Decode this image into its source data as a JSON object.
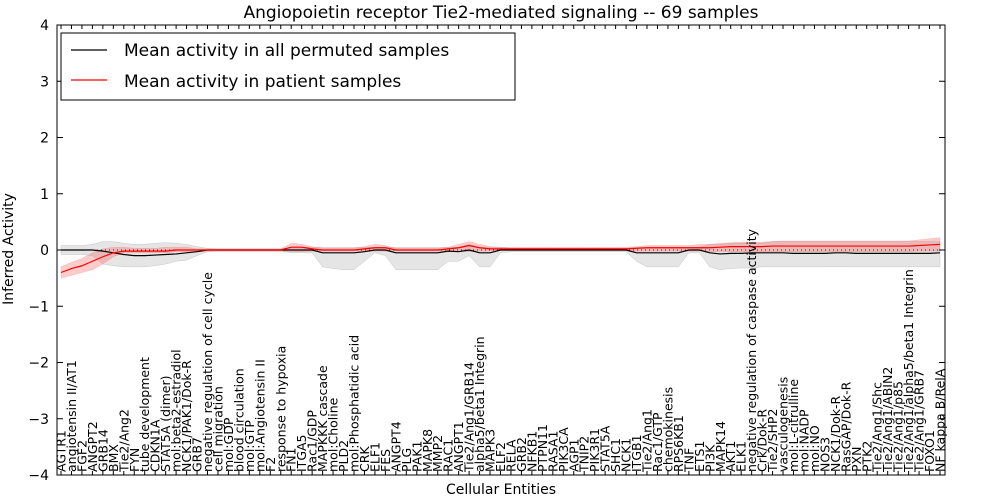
{
  "chart_data": {
    "type": "line",
    "title": "Angiopoietin receptor Tie2-mediated signaling -- 69 samples",
    "xlabel": "Cellular Entities",
    "ylabel": "Inferred Activity",
    "ylim": [
      -4,
      4
    ],
    "yticks": [
      "4",
      "3",
      "2",
      "1",
      "0",
      "−1",
      "−2",
      "−3",
      "−4"
    ],
    "legend": {
      "position": "top-left",
      "entries": [
        {
          "label": "Mean activity in all permuted samples",
          "color": "#000000"
        },
        {
          "label": "Mean activity in patient samples",
          "color": "#ff0000"
        }
      ]
    },
    "categories": [
      "AGTR1",
      "angiotensin II/AT1",
      "FGF2",
      "ANGPT2",
      "GRB14",
      "BMX",
      "Tie2/Ang2",
      "FYN",
      "tube development",
      "CDKN1A",
      "STAT5A (dimer)",
      "mol:beta2-estradiol",
      "NCK1/PAK1/Dok-R",
      "GRB7",
      "negative regulation of cell cycle",
      "cell migration",
      "mol:GDP",
      "blood circulation",
      "mol:GTP",
      "mol:Angiotensin II",
      "F2",
      "response to hypoxia",
      "FN1",
      "ITGA5",
      "Rac1/GDP",
      "MAPKKK cascade",
      "mol:Choline",
      "PLD2",
      "mol:Phosphatidic acid",
      "CRK",
      "ELF1",
      "FES",
      "ANGPT4",
      "PLG",
      "PAK1",
      "MAPK8",
      "MMP2",
      "RAC1",
      "ANGPT1",
      "Tie2/Ang1/GRB14",
      "alpha5/beta1 Integrin",
      "MAPK3",
      "ELF2",
      "RELA",
      "GRB2",
      "NFKB1",
      "PTPN11",
      "RASA1",
      "PIK3CA",
      "AGP1",
      "TNIP2",
      "PIK3R1",
      "STAT5A",
      "SHC1",
      "NCK1",
      "ITGB1",
      "Tie2/Ang1",
      "Rac1/GTP",
      "chemokinesis",
      "RPS6KB1",
      "TNF",
      "ETS1",
      "PI3K",
      "MAPK14",
      "AKT1",
      "ELK1",
      "negative regulation of caspase activity",
      "Crk/Dok-R",
      "Tie2/SHP2",
      "vasculogenesis",
      "mol:L-citrulline",
      "mol:NADP",
      "mol:NO",
      "NOS3",
      "NCK1/Dok-R",
      "RasGAP/Dok-R",
      "PXN",
      "PTK2",
      "Tie2/Ang1/Shc",
      "Tie2/Ang1/ABIN2",
      "Tie2/Ang1/p85",
      "Tie2/Ang1/alpha5/beta1 Integrin",
      "Tie2/Ang1/GRB7",
      "FOXO1",
      "NF kappa B/RelA"
    ],
    "series": [
      {
        "name": "Mean activity in all permuted samples",
        "color": "#000000",
        "values": [
          0.0,
          0.0,
          0.0,
          0.0,
          -0.02,
          -0.05,
          -0.08,
          -0.1,
          -0.1,
          -0.09,
          -0.08,
          -0.07,
          -0.05,
          -0.03,
          0.0,
          0.0,
          0.0,
          0.0,
          0.0,
          0.0,
          0.0,
          0.0,
          0.0,
          0.0,
          0.0,
          -0.05,
          -0.05,
          -0.05,
          -0.05,
          -0.03,
          0.0,
          0.0,
          -0.05,
          -0.05,
          -0.05,
          -0.05,
          -0.05,
          -0.02,
          -0.03,
          0.0,
          -0.05,
          -0.05,
          0.0,
          0.0,
          0.0,
          0.0,
          0.0,
          0.0,
          0.0,
          0.0,
          0.0,
          0.0,
          0.0,
          0.0,
          0.0,
          -0.05,
          -0.05,
          -0.05,
          -0.05,
          -0.05,
          0.0,
          0.0,
          -0.05,
          -0.07,
          -0.06,
          -0.06,
          -0.05,
          -0.05,
          -0.05,
          -0.05,
          -0.06,
          -0.06,
          -0.06,
          -0.06,
          -0.05,
          -0.05,
          -0.06,
          -0.06,
          -0.06,
          -0.06,
          -0.06,
          -0.06,
          -0.06,
          -0.06,
          -0.05
        ],
        "lower": [
          -0.08,
          -0.08,
          -0.08,
          -0.1,
          -0.25,
          -0.28,
          -0.3,
          -0.3,
          -0.3,
          -0.28,
          -0.25,
          -0.2,
          -0.18,
          -0.1,
          -0.03,
          -0.02,
          -0.02,
          -0.02,
          -0.02,
          -0.02,
          -0.02,
          -0.02,
          -0.05,
          -0.05,
          -0.05,
          -0.3,
          -0.33,
          -0.35,
          -0.35,
          -0.2,
          -0.05,
          -0.1,
          -0.35,
          -0.35,
          -0.35,
          -0.35,
          -0.35,
          -0.2,
          -0.2,
          -0.1,
          -0.3,
          -0.3,
          -0.05,
          -0.03,
          -0.03,
          -0.03,
          -0.03,
          -0.03,
          -0.03,
          -0.03,
          -0.03,
          -0.03,
          -0.03,
          -0.03,
          -0.03,
          -0.2,
          -0.3,
          -0.3,
          -0.3,
          -0.3,
          -0.05,
          -0.05,
          -0.3,
          -0.35,
          -0.33,
          -0.32,
          -0.32,
          -0.3,
          -0.3,
          -0.3,
          -0.3,
          -0.3,
          -0.3,
          -0.3,
          -0.3,
          -0.3,
          -0.3,
          -0.3,
          -0.3,
          -0.3,
          -0.3,
          -0.3,
          -0.3,
          -0.3,
          -0.3
        ],
        "upper": [
          0.08,
          0.08,
          0.08,
          0.1,
          0.15,
          0.15,
          0.12,
          0.1,
          0.1,
          0.12,
          0.13,
          0.12,
          0.1,
          0.06,
          0.03,
          0.02,
          0.02,
          0.02,
          0.02,
          0.02,
          0.02,
          0.02,
          0.05,
          0.05,
          0.05,
          0.05,
          0.05,
          0.05,
          0.05,
          0.05,
          0.05,
          0.05,
          0.05,
          0.05,
          0.05,
          0.05,
          0.05,
          0.05,
          0.05,
          0.1,
          0.05,
          0.05,
          0.05,
          0.03,
          0.03,
          0.03,
          0.03,
          0.03,
          0.03,
          0.03,
          0.03,
          0.03,
          0.03,
          0.03,
          0.03,
          0.05,
          0.05,
          0.05,
          0.05,
          0.05,
          0.05,
          0.05,
          0.1,
          0.1,
          0.12,
          0.12,
          0.12,
          0.12,
          0.15,
          0.15,
          0.15,
          0.15,
          0.15,
          0.15,
          0.15,
          0.15,
          0.15,
          0.15,
          0.15,
          0.15,
          0.15,
          0.15,
          0.15,
          0.15,
          0.15
        ]
      },
      {
        "name": "Mean activity in patient samples",
        "color": "#ff0000",
        "values": [
          -0.4,
          -0.33,
          -0.28,
          -0.2,
          -0.12,
          -0.05,
          -0.02,
          -0.02,
          -0.02,
          -0.02,
          -0.02,
          0.0,
          0.0,
          0.0,
          0.0,
          0.0,
          0.0,
          0.0,
          0.0,
          0.0,
          0.0,
          0.0,
          0.05,
          0.05,
          0.02,
          0.0,
          0.0,
          0.0,
          0.0,
          0.02,
          0.04,
          0.04,
          0.0,
          0.0,
          0.0,
          0.0,
          0.0,
          0.02,
          0.04,
          0.08,
          0.04,
          0.02,
          0.02,
          0.02,
          0.02,
          0.02,
          0.02,
          0.02,
          0.02,
          0.02,
          0.02,
          0.02,
          0.02,
          0.02,
          0.02,
          0.03,
          0.04,
          0.04,
          0.04,
          0.04,
          0.04,
          0.04,
          0.04,
          0.05,
          0.06,
          0.06,
          0.06,
          0.06,
          0.07,
          0.07,
          0.07,
          0.07,
          0.07,
          0.07,
          0.07,
          0.07,
          0.07,
          0.07,
          0.07,
          0.07,
          0.07,
          0.07,
          0.08,
          0.09,
          0.1
        ],
        "lower": [
          -0.5,
          -0.45,
          -0.4,
          -0.35,
          -0.25,
          -0.12,
          -0.05,
          -0.05,
          -0.05,
          -0.05,
          -0.05,
          -0.03,
          -0.03,
          -0.03,
          -0.02,
          -0.02,
          -0.02,
          -0.02,
          -0.02,
          -0.02,
          -0.02,
          -0.02,
          -0.03,
          -0.03,
          -0.02,
          -0.02,
          -0.02,
          -0.02,
          -0.02,
          -0.02,
          -0.02,
          -0.02,
          -0.02,
          -0.02,
          -0.02,
          -0.02,
          -0.02,
          -0.02,
          -0.02,
          -0.03,
          -0.02,
          -0.02,
          -0.01,
          -0.01,
          -0.01,
          -0.01,
          -0.01,
          -0.01,
          -0.01,
          -0.01,
          -0.01,
          -0.01,
          -0.01,
          -0.01,
          -0.01,
          -0.02,
          -0.02,
          -0.02,
          -0.02,
          -0.02,
          -0.02,
          -0.02,
          -0.03,
          -0.03,
          -0.03,
          -0.03,
          -0.03,
          -0.03,
          -0.03,
          -0.03,
          -0.03,
          -0.03,
          -0.03,
          -0.03,
          -0.03,
          -0.03,
          -0.03,
          -0.03,
          -0.03,
          -0.03,
          -0.03,
          -0.03,
          -0.02,
          -0.02,
          -0.02
        ],
        "upper": [
          -0.3,
          -0.22,
          -0.15,
          -0.05,
          0.02,
          0.05,
          0.05,
          0.03,
          0.03,
          0.03,
          0.05,
          0.05,
          0.05,
          0.02,
          0.02,
          0.02,
          0.02,
          0.02,
          0.02,
          0.02,
          0.02,
          0.02,
          0.12,
          0.1,
          0.06,
          0.03,
          0.03,
          0.03,
          0.03,
          0.06,
          0.1,
          0.08,
          0.03,
          0.03,
          0.03,
          0.03,
          0.03,
          0.05,
          0.1,
          0.15,
          0.1,
          0.06,
          0.05,
          0.05,
          0.05,
          0.05,
          0.05,
          0.05,
          0.05,
          0.05,
          0.05,
          0.05,
          0.05,
          0.05,
          0.05,
          0.06,
          0.08,
          0.08,
          0.08,
          0.08,
          0.08,
          0.1,
          0.1,
          0.12,
          0.13,
          0.14,
          0.14,
          0.14,
          0.15,
          0.16,
          0.16,
          0.16,
          0.16,
          0.16,
          0.16,
          0.16,
          0.16,
          0.16,
          0.16,
          0.16,
          0.16,
          0.16,
          0.18,
          0.2,
          0.22
        ]
      }
    ]
  }
}
